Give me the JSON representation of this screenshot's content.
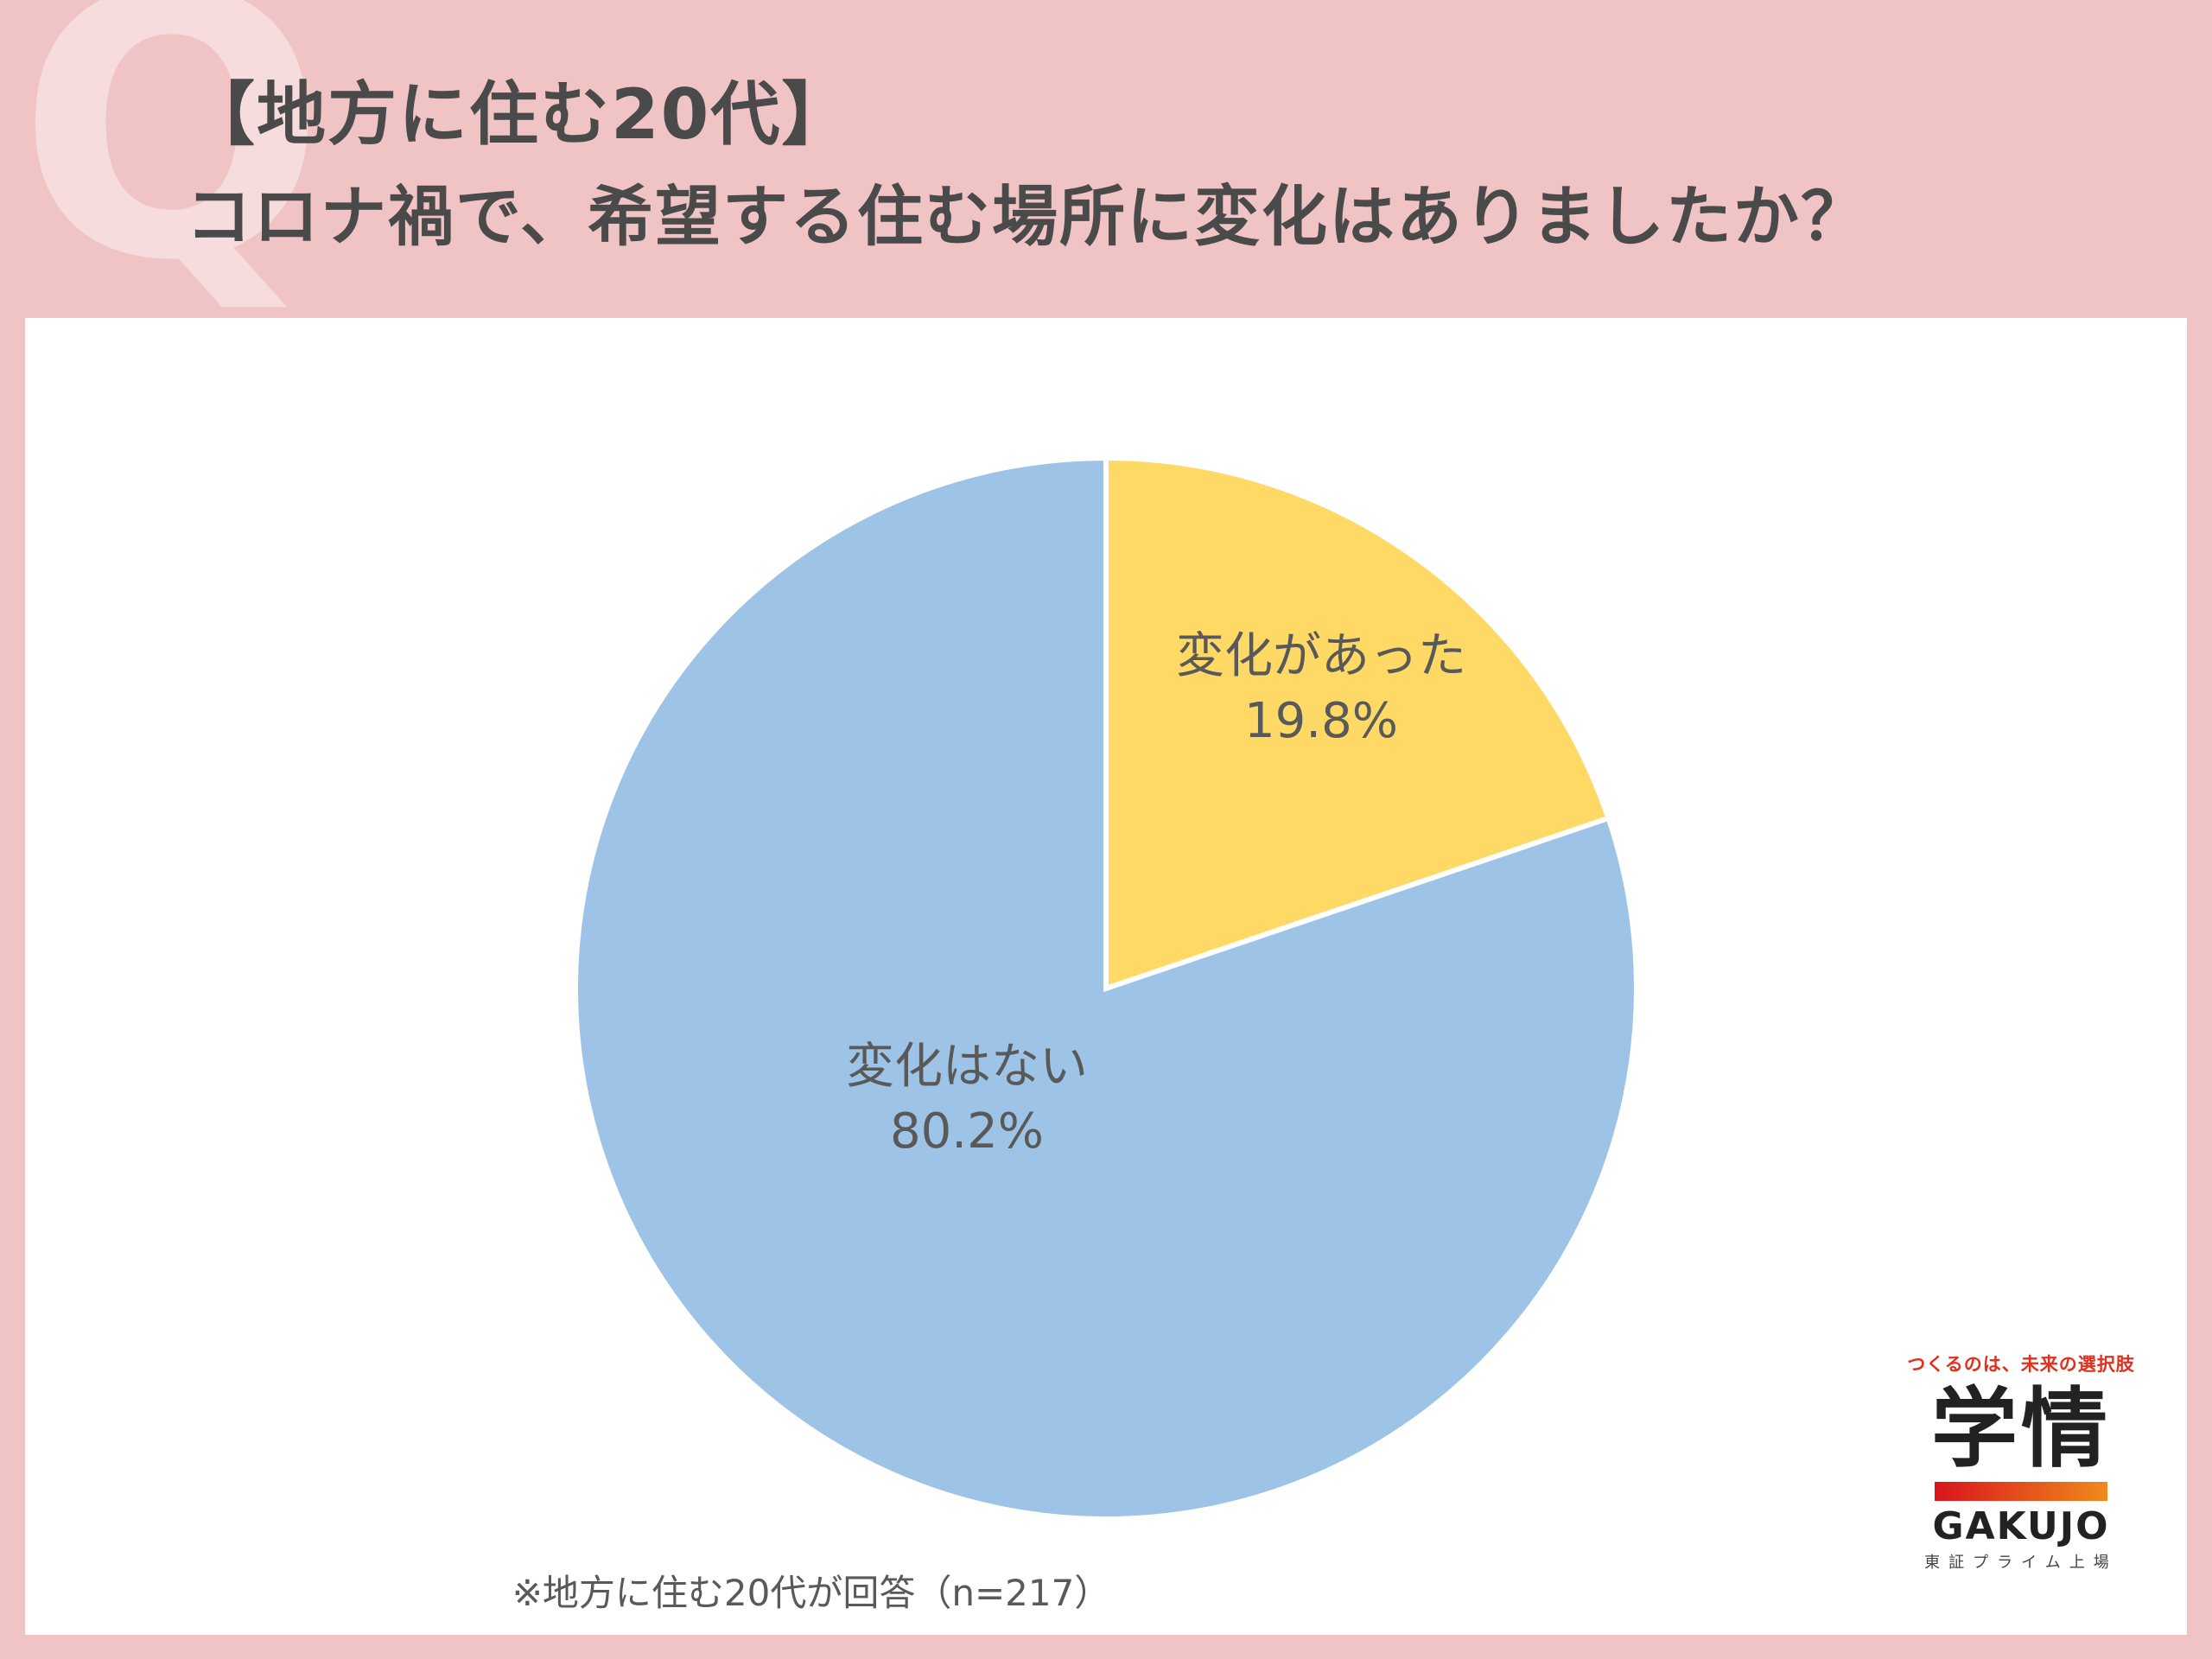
{
  "header": {
    "deco_letter": "Q",
    "title_line1": "【地方に住む20代】",
    "title_line2": "コロナ禍で、希望する住む場所に変化はありましたか？"
  },
  "chart_data": {
    "type": "pie",
    "categories": [
      "変化があった",
      "変化はない"
    ],
    "values": [
      19.8,
      80.2
    ],
    "value_labels": [
      "19.8%",
      "80.2%"
    ],
    "colors": [
      "#ffd966",
      "#9dc3e6"
    ],
    "start_angle": "12 o'clock, clockwise",
    "legend": "none (labels on slices)"
  },
  "note": "※地方に住む20代が回答（n=217）",
  "logo": {
    "tagline": "つくるのは、未来の選択肢",
    "name": "学情",
    "name_en": "GAKUJO",
    "sub": "東証プライム上場",
    "colors": {
      "tagline": "#e0301e",
      "bar_start": "#d8141c",
      "bar_end": "#f08a1c"
    }
  }
}
